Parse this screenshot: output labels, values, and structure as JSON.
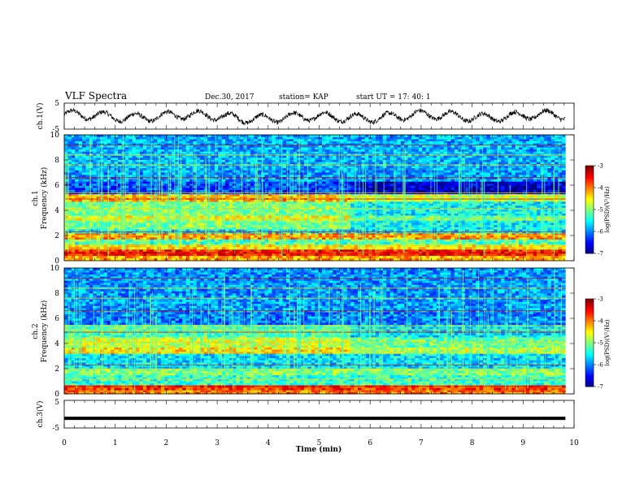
{
  "header": {
    "title": "VLF Spectra",
    "date": "Dec.30, 2017",
    "station": "station= KAP",
    "start_ut": "start  UT =   17: 40: 1"
  },
  "chart_data": [
    {
      "id": "ch1-waveform",
      "type": "line",
      "ylabel": "ch.1(V)",
      "ylim": [
        -5,
        5
      ],
      "yticks": [
        5,
        -5
      ],
      "xlim": [
        0,
        10
      ],
      "data_end_min": 9.83,
      "description_series": "oscillating waveform of roughly +/-2 V with ~0.5 min period"
    },
    {
      "id": "ch1-spectrogram",
      "type": "heatmap",
      "ylabel_top": "ch.1",
      "ylabel": "Frequency  (kHz)",
      "ylim": [
        0,
        10
      ],
      "yticks": [
        0,
        2,
        4,
        6,
        8,
        10
      ],
      "xlim": [
        0,
        10
      ],
      "data_end_min": 9.83,
      "colorbar": {
        "label": "log(PSD)(V²/Hz)",
        "range": [
          -7,
          -3
        ],
        "ticks": [
          -3,
          -4,
          -5,
          -6,
          -7
        ],
        "colormap": "jet"
      },
      "bands": [
        {
          "f0": 0.0,
          "f1": 0.4,
          "v": -4.2
        },
        {
          "f0": 0.4,
          "f1": 0.9,
          "v": -3.6
        },
        {
          "f0": 0.9,
          "f1": 1.3,
          "v": -4.4
        },
        {
          "f0": 1.3,
          "f1": 1.7,
          "v": -5.2
        },
        {
          "f0": 1.7,
          "f1": 2.2,
          "v": -4.1
        },
        {
          "f0": 2.2,
          "f1": 2.5,
          "v": -5.6
        },
        {
          "f0": 2.5,
          "f1": 3.2,
          "v": -5.0
        },
        {
          "f0": 3.2,
          "f1": 3.6,
          "v": -4.6
        },
        {
          "f0": 3.6,
          "f1": 4.7,
          "v": -5.0
        },
        {
          "f0": 4.7,
          "f1": 5.3,
          "v": -4.2
        },
        {
          "f0": 5.3,
          "f1": 6.3,
          "v": -6.2
        },
        {
          "f0": 6.3,
          "f1": 7.2,
          "v": -5.9
        },
        {
          "f0": 7.2,
          "f1": 10.0,
          "v": -5.8
        }
      ],
      "late_shift": {
        "from_min": 5.6,
        "delta": -0.5
      }
    },
    {
      "id": "ch2-spectrogram",
      "type": "heatmap",
      "ylabel_top": "ch.2",
      "ylabel": "Frequency  (kHz)",
      "ylim": [
        0,
        10
      ],
      "yticks": [
        0,
        2,
        4,
        6,
        8,
        10
      ],
      "xlim": [
        0,
        10
      ],
      "data_end_min": 9.83,
      "colorbar": {
        "label": "log(PSD)(V²/Hz)",
        "range": [
          -7,
          -3
        ],
        "ticks": [
          -3,
          -4,
          -5,
          -6,
          -7
        ],
        "colormap": "jet"
      },
      "bands": [
        {
          "f0": 0.0,
          "f1": 0.3,
          "v": -4.0
        },
        {
          "f0": 0.3,
          "f1": 0.7,
          "v": -3.7
        },
        {
          "f0": 0.7,
          "f1": 1.5,
          "v": -5.3
        },
        {
          "f0": 1.5,
          "f1": 2.0,
          "v": -5.0
        },
        {
          "f0": 2.0,
          "f1": 3.2,
          "v": -5.6
        },
        {
          "f0": 3.2,
          "f1": 3.7,
          "v": -4.4
        },
        {
          "f0": 3.7,
          "f1": 4.5,
          "v": -4.7
        },
        {
          "f0": 4.5,
          "f1": 5.5,
          "v": -5.2
        },
        {
          "f0": 5.5,
          "f1": 6.5,
          "v": -6.0
        },
        {
          "f0": 6.5,
          "f1": 10.0,
          "v": -5.9
        }
      ],
      "late_shift": {
        "from_min": 5.6,
        "delta": -0.4
      }
    },
    {
      "id": "ch3-waveform",
      "type": "line",
      "ylabel": "ch.3(V)",
      "ylim": [
        -5,
        5
      ],
      "yticks": [
        5,
        -5
      ],
      "xlim": [
        0,
        10
      ],
      "data_end_min": 9.83,
      "constant_value": -1.5
    }
  ],
  "xaxis": {
    "label": "Time  (min)",
    "ticks": [
      0,
      1,
      2,
      3,
      4,
      5,
      6,
      7,
      8,
      9,
      10
    ]
  }
}
